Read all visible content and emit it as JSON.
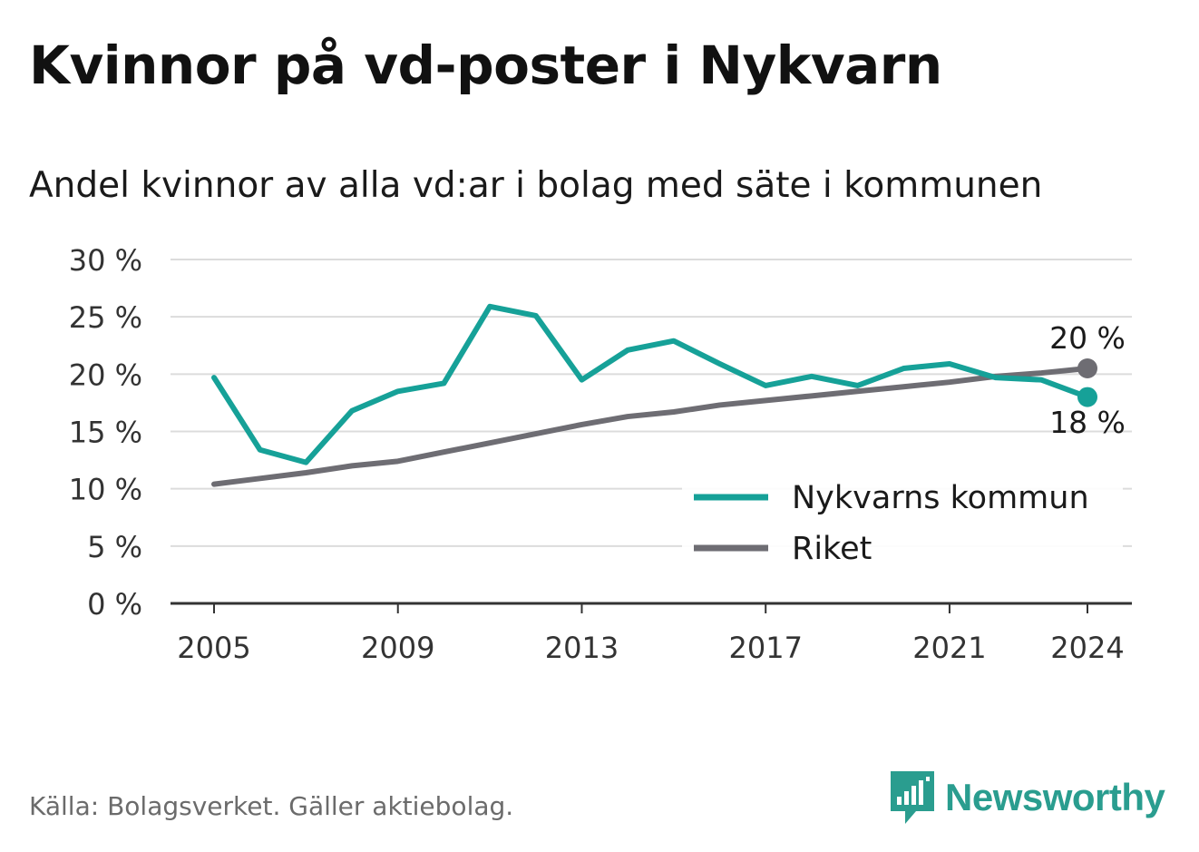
{
  "title": "Kvinnor på vd-poster i Nykvarn",
  "subtitle": "Andel kvinnor av alla vd:ar i bolag med säte i kommunen",
  "source": "Källa: Bolagsverket. Gäller aktiebolag.",
  "brand": {
    "name": "Newsworthy",
    "color": "#2a9d8f"
  },
  "chart_data": {
    "type": "line",
    "x": [
      2005,
      2006,
      2007,
      2008,
      2009,
      2010,
      2011,
      2012,
      2013,
      2014,
      2015,
      2016,
      2017,
      2018,
      2019,
      2020,
      2021,
      2022,
      2023,
      2024
    ],
    "x_ticks": [
      "2005",
      "2009",
      "2013",
      "2017",
      "2021",
      "2024"
    ],
    "y_ticks": [
      "0 %",
      "5 %",
      "10 %",
      "15 %",
      "20 %",
      "25 %",
      "30 %"
    ],
    "ylim": [
      0,
      30
    ],
    "xlim": [
      2005,
      2024
    ],
    "grid": true,
    "legend_position": "bottom-right",
    "series": [
      {
        "name": "Nykvarns kommun",
        "color": "#16a198",
        "values": [
          19.7,
          13.4,
          12.3,
          16.8,
          18.5,
          19.2,
          25.9,
          25.1,
          19.5,
          22.1,
          22.9,
          20.9,
          19.0,
          19.8,
          19.0,
          20.5,
          20.9,
          19.7,
          19.5,
          18.0
        ],
        "end_label": "18 %"
      },
      {
        "name": "Riket",
        "color": "#6e6d73",
        "values": [
          10.4,
          10.9,
          11.4,
          12.0,
          12.4,
          13.2,
          14.0,
          14.8,
          15.6,
          16.3,
          16.7,
          17.3,
          17.7,
          18.1,
          18.5,
          18.9,
          19.3,
          19.8,
          20.1,
          20.5
        ],
        "end_label": "20 %"
      }
    ]
  }
}
